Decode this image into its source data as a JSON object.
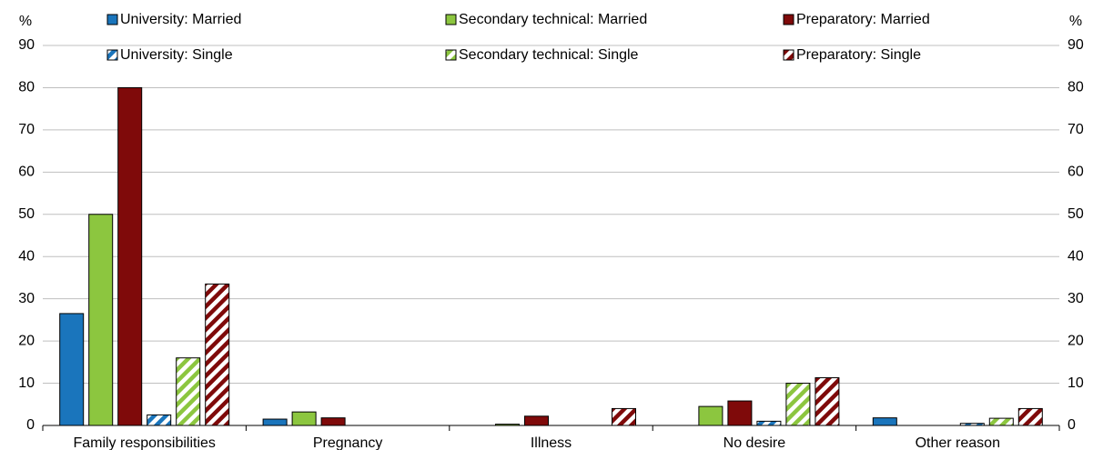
{
  "chart_data": {
    "type": "bar",
    "y_label": "%",
    "y2_label": "%",
    "categories": [
      "Family responsibilities",
      "Pregnancy",
      "Illness",
      "No desire",
      "Other reason"
    ],
    "series": [
      {
        "name": "University: Married",
        "color": "#1a75bc",
        "hatch": false,
        "values": [
          26.5,
          1.5,
          0,
          0,
          1.8
        ]
      },
      {
        "name": "Secondary technical: Married",
        "color": "#8cc63f",
        "hatch": false,
        "values": [
          50,
          3.2,
          0.3,
          4.5,
          0
        ]
      },
      {
        "name": "Preparatory: Married",
        "color": "#7f0a0a",
        "hatch": false,
        "values": [
          80,
          1.8,
          2.2,
          5.8,
          0
        ]
      },
      {
        "name": "University: Single",
        "color": "#1a75bc",
        "hatch": true,
        "values": [
          2.5,
          0,
          0,
          1,
          0.5
        ]
      },
      {
        "name": "Secondary technical: Single",
        "color": "#8cc63f",
        "hatch": true,
        "values": [
          16,
          0,
          0,
          10,
          1.7
        ]
      },
      {
        "name": "Preparatory: Single",
        "color": "#7f0a0a",
        "hatch": true,
        "values": [
          33.5,
          0,
          4,
          11.3,
          4
        ]
      }
    ],
    "ylim": [
      0,
      90
    ],
    "yticks": [
      0,
      10,
      20,
      30,
      40,
      50,
      60,
      70,
      80,
      90
    ],
    "y2lim": [
      0,
      90
    ],
    "y2ticks": [
      0,
      10,
      20,
      30,
      40,
      50,
      60,
      70,
      80,
      90
    ],
    "grid": true
  }
}
